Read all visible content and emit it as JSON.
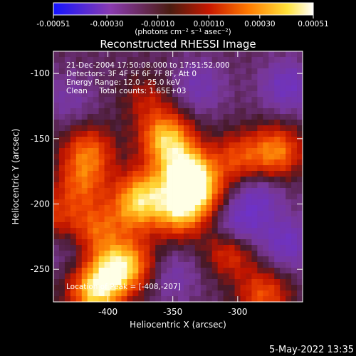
{
  "colorbar": {
    "ticks": [
      -0.00051,
      -0.0003,
      -0.0001,
      0.0001,
      0.0003,
      0.00051
    ],
    "tick_labels": [
      "-0.00051",
      "-0.00030",
      "-0.00010",
      "0.00010",
      "0.00030",
      "0.00051"
    ],
    "range": [
      -0.00051,
      0.00051
    ],
    "units": "(photons cm⁻² s⁻¹ asec⁻²)",
    "colors": [
      "#1414ff",
      "#8a3bb0",
      "#4a1c10",
      "#c81800",
      "#ff7a00",
      "#ffe23a",
      "#ffffff"
    ]
  },
  "info_lines": [
    "21-Dec-2004 17:50:08.000 to 17:51:52.000",
    "Detectors: 3F 4F 5F 6F 7F 8F, Att 0",
    "Energy Range: 12.0 - 25.0 keV",
    "Clean     Total counts: 1.65E+03"
  ],
  "peak_text": "Location of Peak = [-408,-207]",
  "footer_date": "5-May-2022 13:35",
  "chart_data": {
    "type": "heatmap",
    "title": "Reconstructed RHESSI Image",
    "xlabel": "Heliocentric X (arcsec)",
    "ylabel": "Heliocentric Y (arcsec)",
    "xlim": [
      -442,
      -250
    ],
    "ylim": [
      -275,
      -83
    ],
    "xticks": [
      -400,
      -350,
      -300
    ],
    "yticks": [
      -100,
      -150,
      -200,
      -250
    ],
    "grid": false,
    "peak_location": [
      -408,
      -207
    ],
    "blobs": [
      {
        "x": -355,
        "y": -150,
        "value": 0.00045
      },
      {
        "x": -340,
        "y": -175,
        "value": 0.00048
      },
      {
        "x": -345,
        "y": -205,
        "value": 0.00042
      },
      {
        "x": -330,
        "y": -190,
        "value": 0.00035
      },
      {
        "x": -372,
        "y": -190,
        "value": 0.0003
      },
      {
        "x": -415,
        "y": -160,
        "value": 0.0003
      },
      {
        "x": -420,
        "y": -185,
        "value": 0.00025
      },
      {
        "x": -395,
        "y": -250,
        "value": 0.0004
      },
      {
        "x": -410,
        "y": -268,
        "value": 0.00045
      },
      {
        "x": -380,
        "y": -205,
        "value": 0.00028
      },
      {
        "x": -300,
        "y": -165,
        "value": 0.00025
      },
      {
        "x": -270,
        "y": -160,
        "value": 0.00035
      },
      {
        "x": -305,
        "y": -235,
        "value": 0.0003
      },
      {
        "x": -280,
        "y": -270,
        "value": 0.00028
      },
      {
        "x": -370,
        "y": -120,
        "value": 0.00015
      },
      {
        "x": -380,
        "y": -245,
        "value": 0.00022
      },
      {
        "x": -430,
        "y": -120,
        "value": -0.0001
      },
      {
        "x": -330,
        "y": -110,
        "value": -0.00015
      },
      {
        "x": -262,
        "y": -110,
        "value": -0.0002
      },
      {
        "x": -285,
        "y": -195,
        "value": -0.00018
      },
      {
        "x": -262,
        "y": -230,
        "value": -0.0002
      },
      {
        "x": -300,
        "y": -220,
        "value": -0.00025
      },
      {
        "x": -350,
        "y": -255,
        "value": -0.00012
      },
      {
        "x": -430,
        "y": -230,
        "value": -0.0001
      },
      {
        "x": -440,
        "y": -210,
        "value": 0.0002
      },
      {
        "x": -410,
        "y": -220,
        "value": 0.00028
      }
    ]
  }
}
